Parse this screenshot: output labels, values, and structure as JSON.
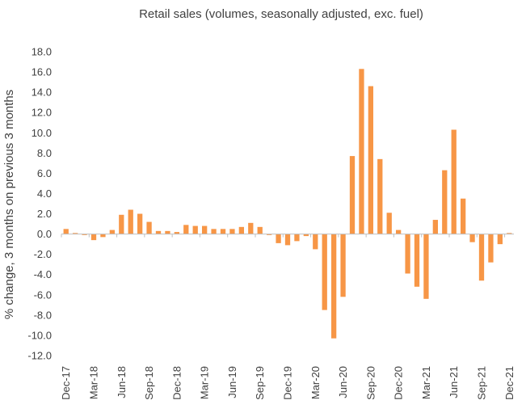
{
  "chart_data": {
    "type": "bar",
    "title": "Retail sales (volumes, seasonally adjusted, exc. fuel)",
    "xlabel": "",
    "ylabel": "% change, 3 months on previous 3 months",
    "ylim": [
      -12,
      18
    ],
    "y_ticks": [
      "18.0",
      "16.0",
      "14.0",
      "12.0",
      "10.0",
      "8.0",
      "6.0",
      "4.0",
      "2.0",
      "0.0",
      "-2.0",
      "-4.0",
      "-6.0",
      "-8.0",
      "-10.0",
      "-12.0"
    ],
    "y_tick_values": [
      18,
      16,
      14,
      12,
      10,
      8,
      6,
      4,
      2,
      0,
      -2,
      -4,
      -6,
      -8,
      -10,
      -12
    ],
    "grid": false,
    "bar_color": "#F79646",
    "categories": [
      "Dec-17",
      "Jan-18",
      "Feb-18",
      "Mar-18",
      "Apr-18",
      "May-18",
      "Jun-18",
      "Jul-18",
      "Aug-18",
      "Sep-18",
      "Oct-18",
      "Nov-18",
      "Dec-18",
      "Jan-19",
      "Feb-19",
      "Mar-19",
      "Apr-19",
      "May-19",
      "Jun-19",
      "Jul-19",
      "Aug-19",
      "Sep-19",
      "Oct-19",
      "Nov-19",
      "Dec-19",
      "Jan-20",
      "Feb-20",
      "Mar-20",
      "Apr-20",
      "May-20",
      "Jun-20",
      "Jul-20",
      "Aug-20",
      "Sep-20",
      "Oct-20",
      "Nov-20",
      "Dec-20",
      "Jan-21",
      "Feb-21",
      "Mar-21",
      "Apr-21",
      "May-21",
      "Jun-21",
      "Jul-21",
      "Aug-21",
      "Sep-21",
      "Oct-21",
      "Nov-21",
      "Dec-21"
    ],
    "values": [
      0.5,
      0.1,
      -0.1,
      -0.6,
      -0.3,
      0.4,
      1.9,
      2.4,
      2.0,
      1.2,
      0.3,
      0.3,
      0.2,
      0.9,
      0.8,
      0.8,
      0.5,
      0.5,
      0.5,
      0.7,
      1.1,
      0.7,
      -0.1,
      -0.9,
      -1.1,
      -0.7,
      -0.2,
      -1.5,
      -7.5,
      -10.3,
      -6.2,
      7.7,
      16.3,
      14.6,
      7.4,
      2.1,
      0.4,
      -3.9,
      -5.2,
      -6.4,
      1.4,
      6.3,
      10.3,
      3.5,
      -0.8,
      -4.6,
      -2.8,
      -1.0,
      0.1
    ],
    "x_tick_labels": [
      "Dec-17",
      "Mar-18",
      "Jun-18",
      "Sep-18",
      "Dec-18",
      "Mar-19",
      "Jun-19",
      "Sep-19",
      "Dec-19",
      "Mar-20",
      "Jun-20",
      "Sep-20",
      "Dec-20",
      "Mar-21",
      "Jun-21",
      "Sep-21",
      "Dec-21"
    ],
    "x_tick_every": 3
  }
}
